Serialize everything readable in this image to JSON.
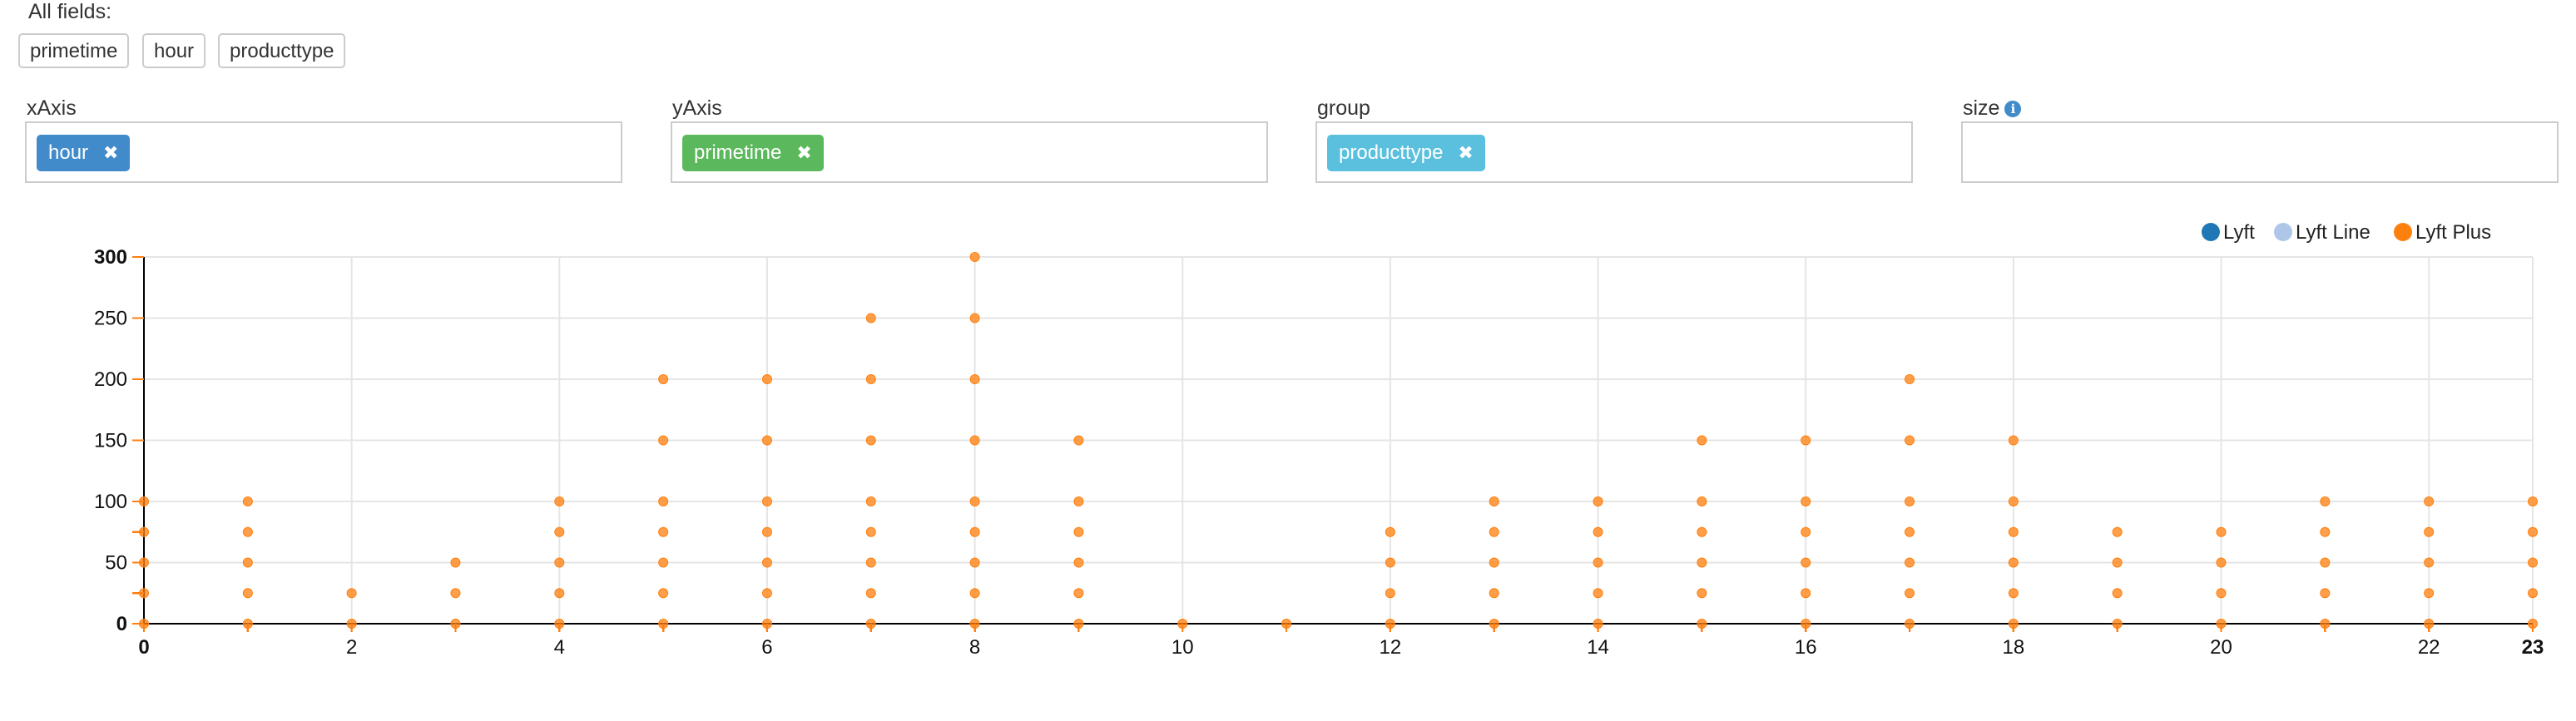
{
  "fields_panel": {
    "label": "All fields:",
    "fields": [
      "primetime",
      "hour",
      "producttype"
    ]
  },
  "encodings": {
    "x": {
      "label": "xAxis",
      "value": "hour"
    },
    "y": {
      "label": "yAxis",
      "value": "primetime"
    },
    "group": {
      "label": "group",
      "value": "producttype"
    },
    "size": {
      "label": "size",
      "value": ""
    }
  },
  "icons": {
    "remove": "close-icon",
    "info": "info-icon"
  },
  "colors": {
    "tag_x": "#428bca",
    "tag_y": "#5cb85c",
    "tag_group": "#5bc0de",
    "lyft": "#1f77b4",
    "lyft_line": "#aec7e8",
    "lyft_plus": "#ff7f0e",
    "grid": "#e5e5e5",
    "axis": "#000000"
  },
  "chart_data": {
    "type": "scatter",
    "xlim": [
      0,
      23
    ],
    "ylim": [
      0,
      300
    ],
    "xticks": [
      0,
      2,
      4,
      6,
      8,
      10,
      12,
      14,
      16,
      18,
      20,
      22,
      23
    ],
    "yticks": [
      0,
      50,
      100,
      150,
      200,
      250,
      300
    ],
    "grid": true,
    "legend_position": "top-right",
    "series": [
      {
        "name": "Lyft",
        "points": []
      },
      {
        "name": "Lyft Line",
        "points": []
      },
      {
        "name": "Lyft Plus",
        "points": [
          [
            0,
            0
          ],
          [
            0,
            25
          ],
          [
            0,
            50
          ],
          [
            0,
            75
          ],
          [
            0,
            100
          ],
          [
            1,
            0
          ],
          [
            1,
            25
          ],
          [
            1,
            50
          ],
          [
            1,
            75
          ],
          [
            1,
            100
          ],
          [
            2,
            0
          ],
          [
            2,
            25
          ],
          [
            3,
            0
          ],
          [
            3,
            25
          ],
          [
            3,
            50
          ],
          [
            4,
            0
          ],
          [
            4,
            25
          ],
          [
            4,
            50
          ],
          [
            4,
            75
          ],
          [
            4,
            100
          ],
          [
            5,
            0
          ],
          [
            5,
            25
          ],
          [
            5,
            50
          ],
          [
            5,
            75
          ],
          [
            5,
            100
          ],
          [
            5,
            150
          ],
          [
            5,
            200
          ],
          [
            6,
            0
          ],
          [
            6,
            25
          ],
          [
            6,
            50
          ],
          [
            6,
            75
          ],
          [
            6,
            100
          ],
          [
            6,
            150
          ],
          [
            6,
            200
          ],
          [
            7,
            0
          ],
          [
            7,
            25
          ],
          [
            7,
            50
          ],
          [
            7,
            75
          ],
          [
            7,
            100
          ],
          [
            7,
            150
          ],
          [
            7,
            200
          ],
          [
            7,
            250
          ],
          [
            8,
            0
          ],
          [
            8,
            25
          ],
          [
            8,
            50
          ],
          [
            8,
            75
          ],
          [
            8,
            100
          ],
          [
            8,
            150
          ],
          [
            8,
            200
          ],
          [
            8,
            250
          ],
          [
            8,
            300
          ],
          [
            9,
            0
          ],
          [
            9,
            25
          ],
          [
            9,
            50
          ],
          [
            9,
            75
          ],
          [
            9,
            100
          ],
          [
            9,
            150
          ],
          [
            10,
            0
          ],
          [
            11,
            0
          ],
          [
            12,
            0
          ],
          [
            12,
            25
          ],
          [
            12,
            50
          ],
          [
            12,
            75
          ],
          [
            13,
            0
          ],
          [
            13,
            25
          ],
          [
            13,
            50
          ],
          [
            13,
            75
          ],
          [
            13,
            100
          ],
          [
            14,
            0
          ],
          [
            14,
            25
          ],
          [
            14,
            50
          ],
          [
            14,
            75
          ],
          [
            14,
            100
          ],
          [
            15,
            0
          ],
          [
            15,
            25
          ],
          [
            15,
            50
          ],
          [
            15,
            75
          ],
          [
            15,
            100
          ],
          [
            15,
            150
          ],
          [
            16,
            0
          ],
          [
            16,
            25
          ],
          [
            16,
            50
          ],
          [
            16,
            75
          ],
          [
            16,
            100
          ],
          [
            16,
            150
          ],
          [
            17,
            0
          ],
          [
            17,
            25
          ],
          [
            17,
            50
          ],
          [
            17,
            75
          ],
          [
            17,
            100
          ],
          [
            17,
            150
          ],
          [
            17,
            200
          ],
          [
            18,
            0
          ],
          [
            18,
            25
          ],
          [
            18,
            50
          ],
          [
            18,
            75
          ],
          [
            18,
            100
          ],
          [
            18,
            150
          ],
          [
            19,
            0
          ],
          [
            19,
            25
          ],
          [
            19,
            50
          ],
          [
            19,
            75
          ],
          [
            20,
            0
          ],
          [
            20,
            25
          ],
          [
            20,
            50
          ],
          [
            20,
            75
          ],
          [
            21,
            0
          ],
          [
            21,
            25
          ],
          [
            21,
            50
          ],
          [
            21,
            75
          ],
          [
            21,
            100
          ],
          [
            22,
            0
          ],
          [
            22,
            25
          ],
          [
            22,
            50
          ],
          [
            22,
            75
          ],
          [
            22,
            100
          ],
          [
            23,
            0
          ],
          [
            23,
            25
          ],
          [
            23,
            50
          ],
          [
            23,
            75
          ],
          [
            23,
            100
          ]
        ]
      }
    ]
  }
}
